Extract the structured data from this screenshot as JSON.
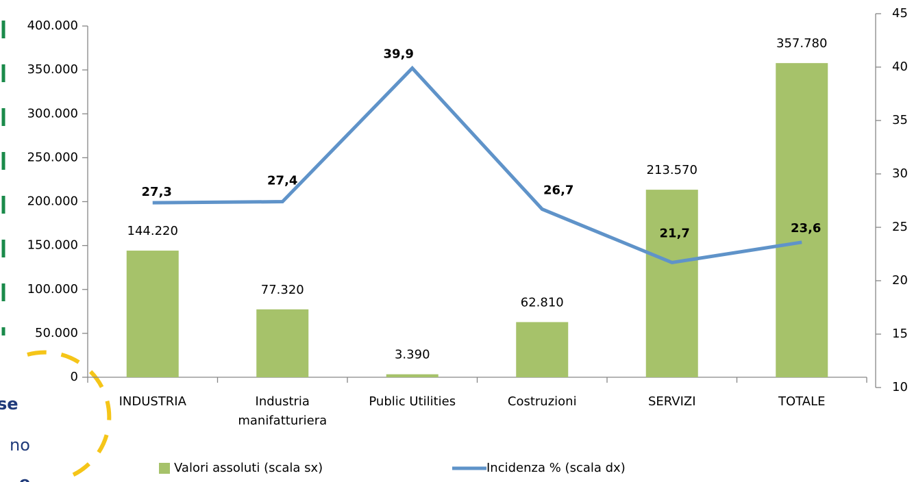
{
  "chart_data": {
    "type": "combo",
    "categories": [
      "INDUSTRIA",
      "Industria manifatturiera",
      "Public Utilities",
      "Costruzioni",
      "SERVIZI",
      "TOTALE"
    ],
    "series": [
      {
        "name": "Valori assoluti (scala sx)",
        "type": "bar",
        "color": "#a6c26a",
        "values": [
          144220,
          77320,
          3390,
          62810,
          213570,
          357780
        ],
        "value_labels": [
          "144.220",
          "77.320",
          "3.390",
          "62.810",
          "213.570",
          "357.780"
        ]
      },
      {
        "name": "Incidenza % (scala dx)",
        "type": "line",
        "axis": "y2",
        "color": "#5f93c9",
        "values": [
          27.3,
          27.4,
          39.9,
          26.7,
          21.7,
          23.6
        ],
        "value_labels": [
          "27,3",
          "27,4",
          "39,9",
          "26,7",
          "21,7",
          "23,6"
        ]
      }
    ],
    "ylim": [
      0,
      400000
    ],
    "yticks": [
      0,
      {
        "value": 50000,
        "label": "50.000"
      },
      {
        "value": 100000,
        "label": "100.000"
      },
      {
        "value": 150000,
        "label": "150.000"
      },
      {
        "value": 200000,
        "label": "200.000"
      },
      {
        "value": 250000,
        "label": "250.000"
      },
      {
        "value": 300000,
        "label": "300.000"
      },
      {
        "value": 350000,
        "label": "350.000"
      },
      {
        "value": 400000,
        "label": "400.000"
      }
    ],
    "y2lim": [
      10,
      45
    ],
    "y2ticks": [
      10,
      15,
      20,
      25,
      30,
      35,
      40,
      45
    ],
    "legend": "bottom",
    "grid": false
  },
  "background_text": [
    "se",
    "no",
    "e"
  ]
}
